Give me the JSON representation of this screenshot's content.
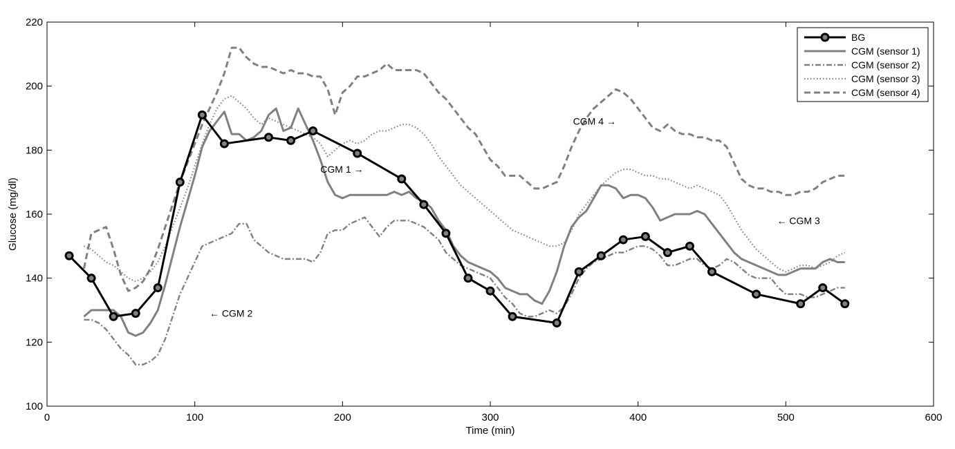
{
  "chart_data": {
    "type": "line",
    "xlabel": "Time (min)",
    "ylabel": "Glucose (mg/dl)",
    "xlim": [
      0,
      600
    ],
    "ylim": [
      100,
      220
    ],
    "xticks": [
      0,
      100,
      200,
      300,
      400,
      500,
      600
    ],
    "yticks": [
      100,
      120,
      140,
      160,
      180,
      200,
      220
    ],
    "grid": false,
    "legend_position": "top-right",
    "series": [
      {
        "name": "BG",
        "color": "#000000",
        "marker_color": "#808080",
        "style": "solid-marker",
        "x": [
          15,
          30,
          45,
          60,
          75,
          90,
          105,
          120,
          150,
          165,
          180,
          210,
          240,
          255,
          270,
          285,
          300,
          315,
          345,
          360,
          375,
          390,
          405,
          420,
          435,
          450,
          480,
          510,
          525,
          540
        ],
        "y": [
          147,
          140,
          128,
          129,
          137,
          170,
          191,
          182,
          184,
          183,
          186,
          179,
          171,
          163,
          154,
          140,
          136,
          128,
          126,
          142,
          147,
          152,
          153,
          148,
          150,
          142,
          135,
          132,
          137,
          132
        ]
      },
      {
        "name": "CGM (sensor 1)",
        "color": "#808080",
        "style": "solid",
        "x": [
          25,
          30,
          35,
          40,
          45,
          50,
          55,
          60,
          65,
          70,
          75,
          80,
          85,
          90,
          95,
          100,
          105,
          110,
          115,
          120,
          125,
          130,
          135,
          140,
          145,
          150,
          155,
          160,
          165,
          170,
          175,
          180,
          185,
          190,
          195,
          200,
          205,
          210,
          215,
          220,
          225,
          230,
          235,
          240,
          245,
          250,
          255,
          260,
          265,
          270,
          275,
          280,
          285,
          290,
          295,
          300,
          305,
          310,
          315,
          320,
          325,
          330,
          335,
          340,
          345,
          350,
          355,
          360,
          365,
          370,
          375,
          380,
          385,
          390,
          395,
          400,
          405,
          410,
          415,
          420,
          425,
          430,
          435,
          440,
          445,
          450,
          455,
          460,
          465,
          470,
          475,
          480,
          485,
          490,
          495,
          500,
          505,
          510,
          515,
          520,
          525,
          530,
          535,
          540
        ],
        "y": [
          128,
          130,
          130,
          130,
          130,
          128,
          123,
          122,
          123,
          126,
          130,
          138,
          147,
          156,
          164,
          172,
          181,
          186,
          189,
          192,
          185,
          185,
          183,
          184,
          186,
          191,
          193,
          186,
          187,
          193,
          188,
          183,
          177,
          170,
          166,
          165,
          166,
          166,
          166,
          166,
          166,
          166,
          167,
          166,
          167,
          165,
          164,
          162,
          158,
          155,
          150,
          147,
          145,
          144,
          143,
          142,
          140,
          137,
          136,
          135,
          135,
          133,
          132,
          136,
          142,
          150,
          156,
          159,
          161,
          165,
          169,
          169,
          168,
          165,
          166,
          166,
          165,
          162,
          158,
          159,
          160,
          160,
          160,
          161,
          160,
          157,
          154,
          151,
          148,
          146,
          145,
          144,
          143,
          142,
          141,
          141,
          142,
          143,
          143,
          143,
          145,
          146,
          145,
          145
        ]
      },
      {
        "name": "CGM (sensor 2)",
        "color": "#808080",
        "style": "dash-dot",
        "x": [
          25,
          30,
          35,
          40,
          45,
          50,
          55,
          60,
          65,
          70,
          75,
          80,
          85,
          90,
          95,
          100,
          105,
          110,
          115,
          120,
          125,
          130,
          135,
          140,
          145,
          150,
          155,
          160,
          165,
          170,
          175,
          180,
          185,
          190,
          195,
          200,
          205,
          210,
          215,
          220,
          225,
          230,
          235,
          240,
          245,
          250,
          255,
          260,
          265,
          270,
          275,
          280,
          285,
          290,
          295,
          300,
          305,
          310,
          315,
          320,
          325,
          330,
          335,
          340,
          345,
          350,
          355,
          360,
          365,
          370,
          375,
          380,
          385,
          390,
          395,
          400,
          405,
          410,
          415,
          420,
          425,
          430,
          435,
          440,
          445,
          450,
          455,
          460,
          465,
          470,
          475,
          480,
          485,
          490,
          495,
          500,
          505,
          510,
          515,
          520,
          525,
          530,
          535,
          540
        ],
        "y": [
          127,
          127,
          126,
          124,
          121,
          118,
          116,
          113,
          113,
          114,
          116,
          121,
          128,
          135,
          140,
          145,
          150,
          151,
          152,
          153,
          154,
          157,
          157,
          152,
          150,
          148,
          147,
          146,
          146,
          146,
          146,
          145,
          148,
          154,
          155,
          155,
          157,
          158,
          159,
          156,
          153,
          156,
          158,
          158,
          158,
          157,
          156,
          154,
          152,
          148,
          146,
          144,
          143,
          142,
          141,
          140,
          137,
          134,
          132,
          129,
          128,
          128,
          129,
          130,
          129,
          131,
          135,
          140,
          143,
          145,
          146,
          147,
          148,
          148,
          149,
          150,
          150,
          149,
          147,
          144,
          144,
          145,
          146,
          146,
          144,
          143,
          144,
          146,
          145,
          143,
          141,
          140,
          140,
          140,
          137,
          135,
          135,
          135,
          134,
          134,
          135,
          136,
          137,
          137
        ]
      },
      {
        "name": "CGM (sensor 3)",
        "color": "#808080",
        "style": "dotted",
        "x": [
          25,
          30,
          35,
          40,
          45,
          50,
          55,
          60,
          65,
          70,
          75,
          80,
          85,
          90,
          95,
          100,
          105,
          110,
          115,
          120,
          125,
          130,
          135,
          140,
          145,
          150,
          155,
          160,
          165,
          170,
          175,
          180,
          185,
          190,
          195,
          200,
          205,
          210,
          215,
          220,
          225,
          230,
          235,
          240,
          245,
          250,
          255,
          260,
          265,
          270,
          275,
          280,
          285,
          290,
          295,
          300,
          305,
          310,
          315,
          320,
          325,
          330,
          335,
          340,
          345,
          350,
          355,
          360,
          365,
          370,
          375,
          380,
          385,
          390,
          395,
          400,
          405,
          410,
          415,
          420,
          425,
          430,
          435,
          440,
          445,
          450,
          455,
          460,
          465,
          470,
          475,
          480,
          485,
          490,
          495,
          500,
          505,
          510,
          515,
          520,
          525,
          530,
          535,
          540
        ],
        "y": [
          150,
          149,
          147,
          145,
          144,
          142,
          140,
          139,
          140,
          142,
          145,
          150,
          156,
          162,
          168,
          175,
          182,
          188,
          193,
          196,
          197,
          195,
          193,
          190,
          188,
          190,
          189,
          188,
          187,
          186,
          185,
          184,
          182,
          178,
          180,
          182,
          183,
          182,
          183,
          185,
          186,
          186,
          187,
          188,
          188,
          187,
          185,
          182,
          178,
          175,
          172,
          169,
          167,
          165,
          163,
          161,
          159,
          157,
          155,
          154,
          153,
          152,
          151,
          150,
          150,
          151,
          155,
          160,
          163,
          166,
          169,
          171,
          173,
          174,
          174,
          173,
          172,
          172,
          171,
          171,
          170,
          169,
          168,
          169,
          168,
          167,
          166,
          163,
          159,
          155,
          152,
          149,
          147,
          145,
          143,
          142,
          143,
          144,
          144,
          143,
          144,
          145,
          147,
          148
        ]
      },
      {
        "name": "CGM (sensor 4)",
        "color": "#808080",
        "style": "dashed",
        "x": [
          25,
          30,
          35,
          40,
          45,
          50,
          55,
          60,
          65,
          70,
          75,
          80,
          85,
          90,
          95,
          100,
          105,
          110,
          115,
          120,
          125,
          130,
          135,
          140,
          145,
          150,
          155,
          160,
          165,
          170,
          175,
          180,
          185,
          190,
          195,
          200,
          205,
          210,
          215,
          220,
          225,
          230,
          235,
          240,
          245,
          250,
          255,
          260,
          265,
          270,
          275,
          280,
          285,
          290,
          295,
          300,
          305,
          310,
          315,
          320,
          325,
          330,
          335,
          340,
          345,
          350,
          355,
          360,
          365,
          370,
          375,
          380,
          385,
          390,
          395,
          400,
          405,
          410,
          415,
          420,
          425,
          430,
          435,
          440,
          445,
          450,
          455,
          460,
          465,
          470,
          475,
          480,
          485,
          490,
          495,
          500,
          505,
          510,
          515,
          520,
          525,
          530,
          535,
          540
        ],
        "y": [
          143,
          154,
          155,
          156,
          149,
          141,
          136,
          137,
          139,
          143,
          149,
          156,
          163,
          170,
          176,
          182,
          188,
          193,
          198,
          204,
          212,
          212,
          209,
          207,
          206,
          206,
          205,
          204,
          205,
          204,
          204,
          203,
          203,
          199,
          191,
          198,
          200,
          203,
          203,
          204,
          205,
          207,
          205,
          205,
          205,
          205,
          204,
          201,
          198,
          196,
          193,
          190,
          187,
          185,
          181,
          177,
          175,
          172,
          172,
          172,
          170,
          168,
          168,
          169,
          170,
          175,
          181,
          186,
          190,
          193,
          195,
          197,
          199,
          198,
          196,
          193,
          190,
          187,
          186,
          188,
          186,
          185,
          185,
          184,
          184,
          183,
          183,
          181,
          176,
          171,
          169,
          168,
          168,
          167,
          167,
          166,
          166,
          167,
          167,
          168,
          170,
          171,
          172,
          172
        ]
      }
    ],
    "annotations": [
      {
        "text": "CGM 1 →",
        "x": 185,
        "y": 174
      },
      {
        "text": "← CGM 2",
        "x": 110,
        "y": 129
      },
      {
        "text": "← CGM 3",
        "x": 494,
        "y": 158
      },
      {
        "text": "CGM 4 →",
        "x": 356,
        "y": 189
      }
    ]
  }
}
